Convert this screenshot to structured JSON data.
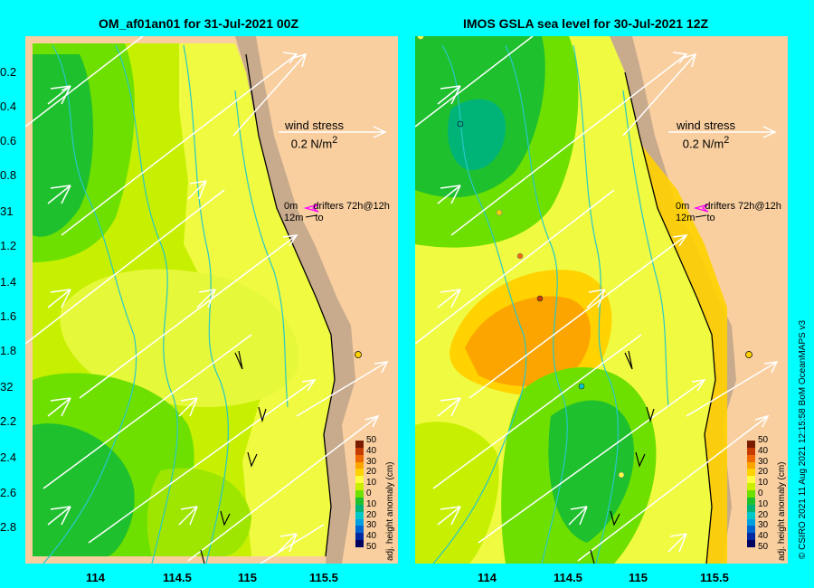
{
  "left_panel": {
    "title": "OM_af01an01 for 31-Jul-2021 00Z"
  },
  "right_panel": {
    "title": "IMOS GSLA sea level  for 30-Jul-2021 12Z"
  },
  "lat_labels": [
    "0.2",
    "0.4",
    "0.6",
    "0.8",
    "31",
    "1.2",
    "1.4",
    "1.6",
    "1.8",
    "32",
    "2.2",
    "2.4",
    "2.6",
    "2.8"
  ],
  "lon_labels": [
    "114",
    "114.5",
    "115",
    "115.5"
  ],
  "wind_stress": {
    "line1": "wind stress",
    "value": "0.2 N/m",
    "unit_sup": "2"
  },
  "drifters": {
    "line1": "0m",
    "line1_label": "drifters 72h@12h",
    "line2": "12m",
    "line2_label": "to"
  },
  "colorbar": {
    "ticks": [
      "50",
      "40",
      "30",
      "20",
      "10",
      "0",
      "10",
      "20",
      "30",
      "40",
      "50"
    ],
    "label": "adj. height anomaly (cm)",
    "colors": [
      "#7a1c00",
      "#c63c00",
      "#ee6a00",
      "#fca500",
      "#ffd200",
      "#ffff40",
      "#c8f000",
      "#6ee000",
      "#1ec02e",
      "#00b478",
      "#00c8c8",
      "#00a0e0",
      "#0064d0",
      "#0028a0",
      "#000060"
    ]
  },
  "credit": "© CSIRO 2021  11 Aug 2021 12:15:58 BoM OceanMAPS v3",
  "colors": {
    "land": "#f9cfa0",
    "shelf": "#c8aa8c",
    "background": "#00ffff"
  }
}
